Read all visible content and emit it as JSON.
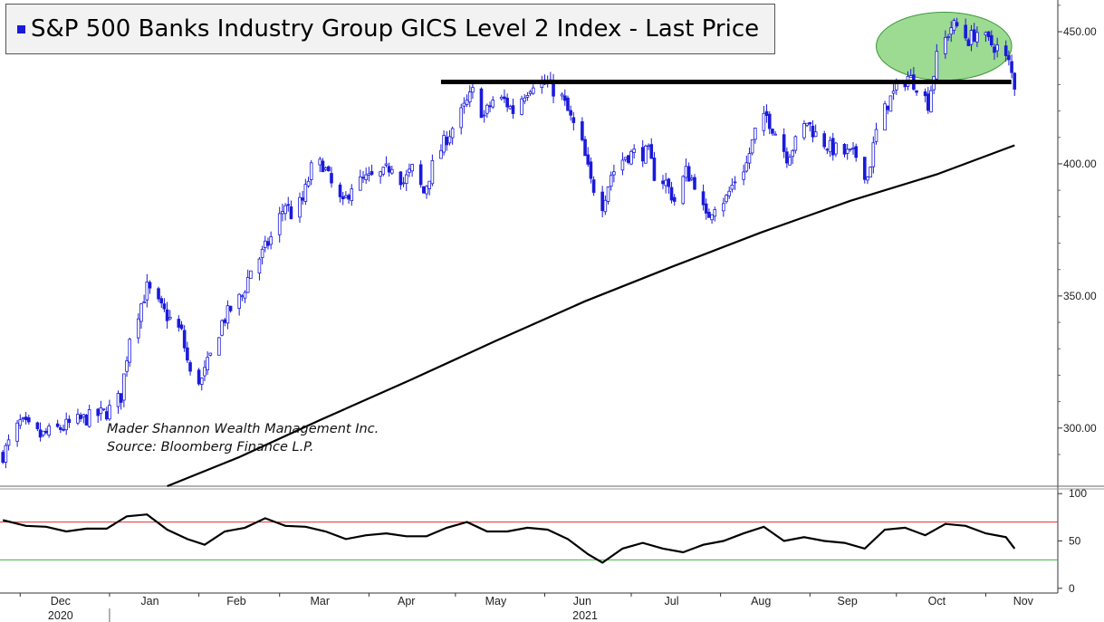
{
  "chart_data": [
    {
      "type": "candlestick",
      "title": "S&P 500 Banks Industry Group GICS Level 2 Index - Last Price",
      "series_color": "#1a1adc",
      "ylim": [
        278,
        462
      ],
      "y_ticks": [
        "300.00",
        "350.00",
        "400.00",
        "450.00"
      ],
      "y_tick_values": [
        300,
        350,
        400,
        450
      ],
      "resistance_level": 431,
      "resistance_range": [
        "2021-04-26",
        "2021-11-08"
      ],
      "highlight_ellipse": {
        "color": "#7ccd6e",
        "x_range": [
          "2021-09-24",
          "2021-11-10"
        ],
        "y_range": [
          433,
          456
        ]
      },
      "notes": [
        "Mader Shannon Wealth Management Inc.",
        "Source: Bloomberg Finance L.P."
      ],
      "price_points": [
        [
          "2020-11-25",
          290
        ],
        [
          "2020-12-01",
          302
        ],
        [
          "2020-12-08",
          297
        ],
        [
          "2020-12-15",
          300
        ],
        [
          "2020-12-22",
          303
        ],
        [
          "2020-12-31",
          306
        ],
        [
          "2021-01-05",
          312
        ],
        [
          "2021-01-08",
          335
        ],
        [
          "2021-01-12",
          347
        ],
        [
          "2021-01-14",
          353
        ],
        [
          "2021-01-19",
          345
        ],
        [
          "2021-01-26",
          336
        ],
        [
          "2021-01-29",
          320
        ],
        [
          "2021-02-02",
          318
        ],
        [
          "2021-02-05",
          327
        ],
        [
          "2021-02-09",
          340
        ],
        [
          "2021-02-12",
          345
        ],
        [
          "2021-02-16",
          350
        ],
        [
          "2021-02-19",
          360
        ],
        [
          "2021-02-23",
          366
        ],
        [
          "2021-02-26",
          372
        ],
        [
          "2021-03-03",
          385
        ],
        [
          "2021-03-05",
          381
        ],
        [
          "2021-03-09",
          386
        ],
        [
          "2021-03-12",
          398
        ],
        [
          "2021-03-16",
          400
        ],
        [
          "2021-03-19",
          392
        ],
        [
          "2021-03-23",
          384
        ],
        [
          "2021-03-26",
          392
        ],
        [
          "2021-03-31",
          394
        ],
        [
          "2021-04-06",
          396
        ],
        [
          "2021-04-09",
          400
        ],
        [
          "2021-04-13",
          393
        ],
        [
          "2021-04-16",
          398
        ],
        [
          "2021-04-20",
          389
        ],
        [
          "2021-04-23",
          399
        ],
        [
          "2021-04-28",
          410
        ],
        [
          "2021-05-03",
          419
        ],
        [
          "2021-05-07",
          427
        ],
        [
          "2021-05-11",
          418
        ],
        [
          "2021-05-14",
          424
        ],
        [
          "2021-05-18",
          424
        ],
        [
          "2021-05-21",
          420
        ],
        [
          "2021-05-25",
          427
        ],
        [
          "2021-05-28",
          431
        ],
        [
          "2021-06-02",
          430
        ],
        [
          "2021-06-07",
          425
        ],
        [
          "2021-06-10",
          417
        ],
        [
          "2021-06-14",
          407
        ],
        [
          "2021-06-17",
          393
        ],
        [
          "2021-06-21",
          385
        ],
        [
          "2021-06-24",
          396
        ],
        [
          "2021-06-29",
          403
        ],
        [
          "2021-07-02",
          404
        ],
        [
          "2021-07-07",
          404
        ],
        [
          "2021-07-09",
          396
        ],
        [
          "2021-07-13",
          393
        ],
        [
          "2021-07-16",
          386
        ],
        [
          "2021-07-20",
          397
        ],
        [
          "2021-07-23",
          393
        ],
        [
          "2021-07-27",
          379
        ],
        [
          "2021-07-30",
          385
        ],
        [
          "2021-08-03",
          387
        ],
        [
          "2021-08-06",
          394
        ],
        [
          "2021-08-10",
          400
        ],
        [
          "2021-08-13",
          412
        ],
        [
          "2021-08-17",
          418
        ],
        [
          "2021-08-20",
          412
        ],
        [
          "2021-08-24",
          403
        ],
        [
          "2021-08-27",
          408
        ],
        [
          "2021-08-31",
          416
        ],
        [
          "2021-09-03",
          411
        ],
        [
          "2021-09-08",
          406
        ],
        [
          "2021-09-13",
          404
        ],
        [
          "2021-09-17",
          403
        ],
        [
          "2021-09-21",
          395
        ],
        [
          "2021-09-24",
          412
        ],
        [
          "2021-09-28",
          423
        ],
        [
          "2021-10-01",
          428
        ],
        [
          "2021-10-05",
          433
        ],
        [
          "2021-10-08",
          430
        ],
        [
          "2021-10-12",
          423
        ],
        [
          "2021-10-15",
          440
        ],
        [
          "2021-10-20",
          452
        ],
        [
          "2021-10-22",
          452
        ],
        [
          "2021-10-26",
          447
        ],
        [
          "2021-10-29",
          450
        ],
        [
          "2021-11-02",
          446
        ],
        [
          "2021-11-05",
          444
        ],
        [
          "2021-11-09",
          438
        ],
        [
          "2021-11-11",
          430
        ]
      ],
      "moving_average_points": [
        [
          "2021-01-21",
          278
        ],
        [
          "2021-02-15",
          289
        ],
        [
          "2021-03-15",
          303
        ],
        [
          "2021-04-15",
          318
        ],
        [
          "2021-05-15",
          333
        ],
        [
          "2021-06-15",
          348
        ],
        [
          "2021-07-15",
          361
        ],
        [
          "2021-08-15",
          374
        ],
        [
          "2021-09-15",
          386
        ],
        [
          "2021-10-15",
          396
        ],
        [
          "2021-11-11",
          407
        ]
      ]
    },
    {
      "type": "line",
      "indicator": "oscillator",
      "ylim": [
        -5,
        105
      ],
      "y_ticks": [
        "100",
        "50",
        "0"
      ],
      "y_tick_values": [
        100,
        50,
        0
      ],
      "upper_band": 70,
      "lower_band": 30,
      "upper_band_color": "#e03030",
      "lower_band_color": "#3cb43c",
      "points": [
        [
          "2020-11-25",
          72
        ],
        [
          "2020-12-03",
          66
        ],
        [
          "2020-12-10",
          65
        ],
        [
          "2020-12-17",
          60
        ],
        [
          "2020-12-24",
          63
        ],
        [
          "2020-12-31",
          63
        ],
        [
          "2021-01-07",
          76
        ],
        [
          "2021-01-14",
          78
        ],
        [
          "2021-01-21",
          62
        ],
        [
          "2021-01-28",
          52
        ],
        [
          "2021-02-03",
          46
        ],
        [
          "2021-02-10",
          60
        ],
        [
          "2021-02-17",
          64
        ],
        [
          "2021-02-24",
          74
        ],
        [
          "2021-03-03",
          66
        ],
        [
          "2021-03-10",
          65
        ],
        [
          "2021-03-17",
          60
        ],
        [
          "2021-03-24",
          52
        ],
        [
          "2021-03-31",
          56
        ],
        [
          "2021-04-07",
          58
        ],
        [
          "2021-04-14",
          55
        ],
        [
          "2021-04-21",
          55
        ],
        [
          "2021-04-28",
          64
        ],
        [
          "2021-05-05",
          70
        ],
        [
          "2021-05-12",
          60
        ],
        [
          "2021-05-19",
          60
        ],
        [
          "2021-05-26",
          64
        ],
        [
          "2021-06-02",
          62
        ],
        [
          "2021-06-09",
          52
        ],
        [
          "2021-06-16",
          36
        ],
        [
          "2021-06-21",
          27
        ],
        [
          "2021-06-28",
          42
        ],
        [
          "2021-07-05",
          48
        ],
        [
          "2021-07-12",
          42
        ],
        [
          "2021-07-19",
          38
        ],
        [
          "2021-07-26",
          46
        ],
        [
          "2021-08-02",
          50
        ],
        [
          "2021-08-09",
          58
        ],
        [
          "2021-08-16",
          65
        ],
        [
          "2021-08-23",
          50
        ],
        [
          "2021-08-30",
          54
        ],
        [
          "2021-09-06",
          50
        ],
        [
          "2021-09-13",
          48
        ],
        [
          "2021-09-20",
          42
        ],
        [
          "2021-09-27",
          62
        ],
        [
          "2021-10-04",
          64
        ],
        [
          "2021-10-11",
          56
        ],
        [
          "2021-10-18",
          68
        ],
        [
          "2021-10-25",
          66
        ],
        [
          "2021-11-01",
          58
        ],
        [
          "2021-11-08",
          54
        ],
        [
          "2021-11-11",
          42
        ]
      ]
    }
  ],
  "x_axis": {
    "months": [
      {
        "label": "Dec",
        "date": "2020-12-15"
      },
      {
        "label": "Jan",
        "date": "2021-01-15"
      },
      {
        "label": "Feb",
        "date": "2021-02-14"
      },
      {
        "label": "Mar",
        "date": "2021-03-15"
      },
      {
        "label": "Apr",
        "date": "2021-04-14"
      },
      {
        "label": "May",
        "date": "2021-05-15"
      },
      {
        "label": "Jun",
        "date": "2021-06-14"
      },
      {
        "label": "Jul",
        "date": "2021-07-15"
      },
      {
        "label": "Aug",
        "date": "2021-08-15"
      },
      {
        "label": "Sep",
        "date": "2021-09-14"
      },
      {
        "label": "Oct",
        "date": "2021-10-15"
      },
      {
        "label": "Nov",
        "date": "2021-11-14"
      }
    ],
    "years": [
      {
        "label": "2020",
        "date": "2020-12-15"
      },
      {
        "label": "2021",
        "date": "2021-06-15"
      }
    ],
    "range": [
      "2020-11-24",
      "2021-11-26"
    ]
  }
}
